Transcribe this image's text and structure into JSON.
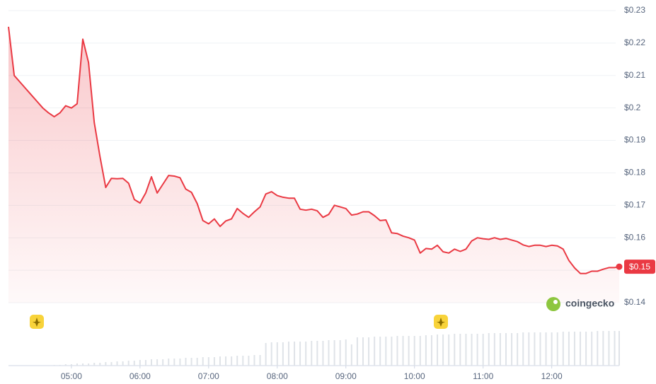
{
  "chart_data": {
    "type": "line",
    "x": [
      "04:05",
      "04:10",
      "04:15",
      "04:20",
      "04:25",
      "04:30",
      "04:35",
      "04:40",
      "04:45",
      "04:50",
      "04:55",
      "05:00",
      "05:05",
      "05:10",
      "05:15",
      "05:20",
      "05:25",
      "05:30",
      "05:35",
      "05:40",
      "05:45",
      "05:50",
      "05:55",
      "06:00",
      "06:05",
      "06:10",
      "06:15",
      "06:20",
      "06:25",
      "06:30",
      "06:35",
      "06:40",
      "06:45",
      "06:50",
      "06:55",
      "07:00",
      "07:05",
      "07:10",
      "07:15",
      "07:20",
      "07:25",
      "07:30",
      "07:35",
      "07:40",
      "07:45",
      "07:50",
      "07:55",
      "08:00",
      "08:05",
      "08:10",
      "08:15",
      "08:20",
      "08:25",
      "08:30",
      "08:35",
      "08:40",
      "08:45",
      "08:50",
      "08:55",
      "09:00",
      "09:05",
      "09:10",
      "09:15",
      "09:20",
      "09:25",
      "09:30",
      "09:35",
      "09:40",
      "09:45",
      "09:50",
      "09:55",
      "10:00",
      "10:05",
      "10:10",
      "10:15",
      "10:20",
      "10:25",
      "10:30",
      "10:35",
      "10:40",
      "10:45",
      "10:50",
      "10:55",
      "11:00",
      "11:05",
      "11:10",
      "11:15",
      "11:20",
      "11:25",
      "11:30",
      "11:35",
      "11:40",
      "11:45",
      "11:50",
      "11:55",
      "12:00",
      "12:05",
      "12:10",
      "12:15",
      "12:20",
      "12:25",
      "12:30",
      "12:35",
      "12:40",
      "12:45",
      "12:50",
      "12:55",
      "12:59"
    ],
    "series": [
      {
        "color": "#ea3943",
        "values": [
          0.225,
          0.21,
          0.208,
          0.206,
          0.204,
          0.202,
          0.2,
          0.1985,
          0.1973,
          0.1985,
          0.2007,
          0.2,
          0.2013,
          0.2212,
          0.214,
          0.1955,
          0.185,
          0.1755,
          0.1783,
          0.1782,
          0.1783,
          0.1768,
          0.1718,
          0.1707,
          0.1738,
          0.1788,
          0.1738,
          0.1765,
          0.1792,
          0.179,
          0.1785,
          0.175,
          0.174,
          0.1705,
          0.1653,
          0.1643,
          0.1658,
          0.1635,
          0.1652,
          0.1658,
          0.169,
          0.1675,
          0.1663,
          0.168,
          0.1695,
          0.1735,
          0.1742,
          0.173,
          0.1725,
          0.1722,
          0.1722,
          0.1688,
          0.1685,
          0.1688,
          0.1683,
          0.1663,
          0.1672,
          0.17,
          0.1695,
          0.169,
          0.167,
          0.1673,
          0.168,
          0.168,
          0.1668,
          0.1653,
          0.1655,
          0.1615,
          0.1613,
          0.1605,
          0.16,
          0.1593,
          0.1553,
          0.1567,
          0.1565,
          0.1577,
          0.1557,
          0.1553,
          0.1565,
          0.1558,
          0.1565,
          0.159,
          0.16,
          0.1597,
          0.1595,
          0.16,
          0.1595,
          0.1598,
          0.1593,
          0.1588,
          0.1578,
          0.1573,
          0.1577,
          0.1577,
          0.1573,
          0.1577,
          0.1575,
          0.1565,
          0.153,
          0.1507,
          0.149,
          0.149,
          0.1497,
          0.1497,
          0.1503,
          0.1508,
          0.1508,
          0.1511
        ]
      }
    ],
    "volume": {
      "color": "#dfe3e8",
      "lim": [
        0,
        50
      ],
      "values": [
        0,
        0,
        0,
        0,
        0,
        0,
        0,
        0,
        1,
        1,
        2,
        2,
        3,
        3,
        3,
        4,
        4,
        5,
        5,
        6,
        6,
        7,
        7,
        8,
        8,
        9,
        9,
        9,
        10,
        10,
        10,
        11,
        11,
        11,
        12,
        12,
        12,
        13,
        13,
        13,
        14,
        14,
        14,
        15,
        15,
        32,
        33,
        33,
        33,
        34,
        34,
        34,
        34,
        35,
        35,
        35,
        36,
        36,
        36,
        37,
        30,
        40,
        40,
        40,
        41,
        41,
        41,
        41,
        42,
        42,
        42,
        42,
        42,
        43,
        43,
        44,
        44,
        44,
        45,
        45,
        45,
        45,
        45,
        45,
        46,
        46,
        46,
        46,
        46,
        46,
        47,
        47,
        47,
        47,
        47,
        47,
        47,
        48,
        48,
        48,
        48,
        48,
        48,
        49,
        49,
        49,
        49,
        49
      ]
    },
    "xlim": [
      "04:05",
      "12:59"
    ],
    "xticks": [
      "05:00",
      "06:00",
      "07:00",
      "08:00",
      "09:00",
      "10:00",
      "11:00",
      "12:00"
    ],
    "ylim": [
      0.14,
      0.23
    ],
    "yticks": [
      {
        "value": 0.14,
        "label": "$0.14"
      },
      {
        "value": 0.15,
        "label": "$0.15"
      },
      {
        "value": 0.16,
        "label": "$0.16"
      },
      {
        "value": 0.17,
        "label": "$0.17"
      },
      {
        "value": 0.18,
        "label": "$0.18"
      },
      {
        "value": 0.19,
        "label": "$0.19"
      },
      {
        "value": 0.2,
        "label": "$0.2"
      },
      {
        "value": 0.21,
        "label": "$0.21"
      },
      {
        "value": 0.22,
        "label": "$0.22"
      },
      {
        "value": 0.23,
        "label": "$0.23"
      }
    ],
    "current_price_label": "$0.15",
    "watermark": "coingecko",
    "grid": true
  }
}
